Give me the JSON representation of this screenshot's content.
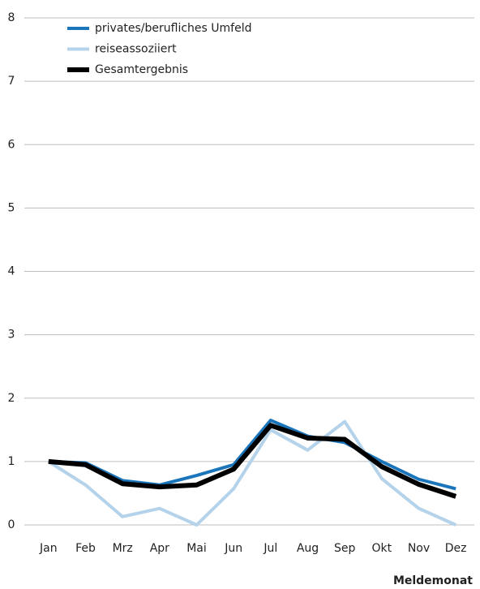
{
  "chart_data": {
    "type": "line",
    "x_label": "Meldemonat",
    "categories": [
      "Jan",
      "Feb",
      "Mrz",
      "Apr",
      "Mai",
      "Jun",
      "Jul",
      "Aug",
      "Sep",
      "Okt",
      "Nov",
      "Dez"
    ],
    "series": [
      {
        "name": "privates/berufliches Umfeld",
        "color": "#1a75bb",
        "values": [
          1.0,
          0.98,
          0.7,
          0.63,
          0.78,
          0.95,
          1.65,
          1.4,
          1.3,
          1.0,
          0.72,
          0.57
        ]
      },
      {
        "name": "reiseassoziiert",
        "color": "#b4d3ea",
        "values": [
          1.0,
          0.63,
          0.13,
          0.26,
          0.0,
          0.57,
          1.5,
          1.18,
          1.63,
          0.73,
          0.26,
          0.0
        ]
      },
      {
        "name": "Gesamtergebnis",
        "color": "#000000",
        "values": [
          1.0,
          0.95,
          0.65,
          0.6,
          0.63,
          0.88,
          1.57,
          1.37,
          1.35,
          0.92,
          0.64,
          0.45
        ]
      }
    ],
    "ylim": [
      0,
      8
    ],
    "yticks": [
      0,
      1,
      2,
      3,
      4,
      5,
      6,
      7,
      8
    ],
    "grid": true,
    "legend": "top-left"
  }
}
